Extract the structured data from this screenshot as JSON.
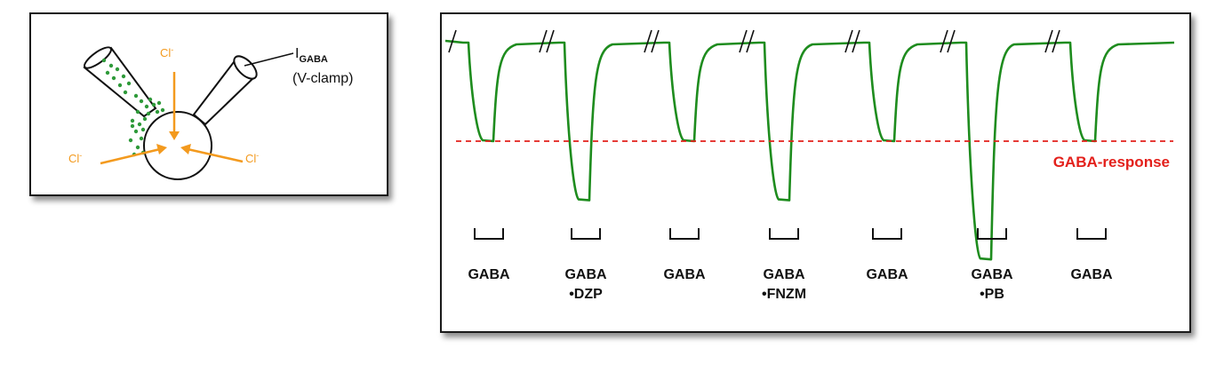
{
  "setup": {
    "chloride_ion": "Cl",
    "chloride_charge": "-",
    "current_main": "I",
    "current_sub": "GABA",
    "clamp_label": "(V-clamp)"
  },
  "trace": {
    "reference_label": "GABA-response",
    "applications": [
      {
        "line1": "GABA",
        "line2": "",
        "relative_amplitude": 1.0
      },
      {
        "line1": "GABA",
        "line2": "•DZP",
        "relative_amplitude": 1.6
      },
      {
        "line1": "GABA",
        "line2": "",
        "relative_amplitude": 1.0
      },
      {
        "line1": "GABA",
        "line2": "•FNZM",
        "relative_amplitude": 1.6
      },
      {
        "line1": "GABA",
        "line2": "",
        "relative_amplitude": 1.0
      },
      {
        "line1": "GABA",
        "line2": "•PB",
        "relative_amplitude": 2.2
      },
      {
        "line1": "GABA",
        "line2": "",
        "relative_amplitude": 1.0
      }
    ]
  },
  "colors": {
    "trace": "#1e8c1e",
    "reference": "#e3201b",
    "chloride": "#f39a1e",
    "border": "#1a1a1a"
  }
}
